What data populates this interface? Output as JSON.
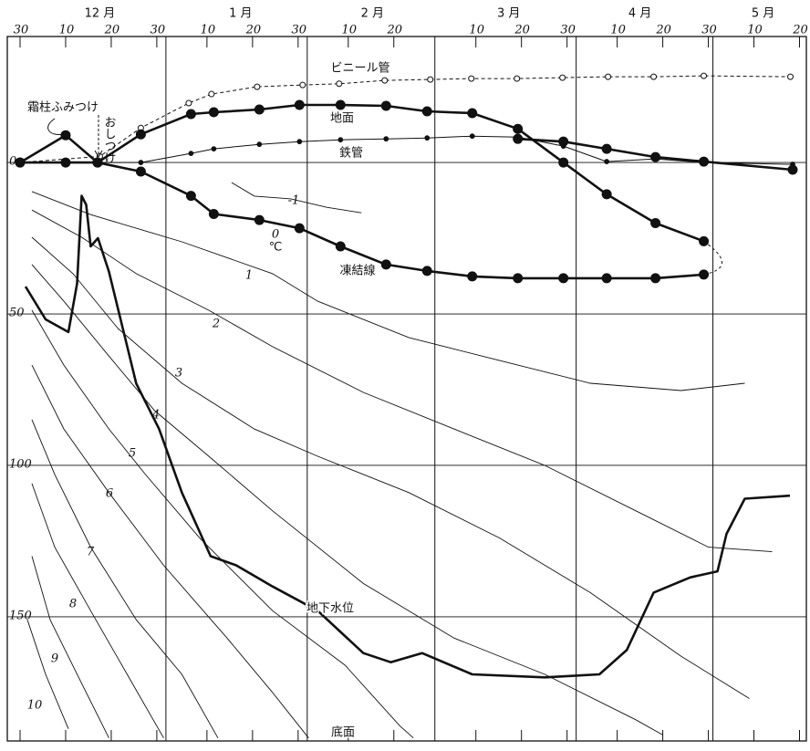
{
  "chart_data": {
    "type": "line",
    "color": "#111111",
    "xlim": [
      -2.8,
      172.5
    ],
    "ylim": [
      -191,
      41.6
    ],
    "xticks": [
      {
        "value": 0,
        "label": "30"
      },
      {
        "value": 10,
        "label": "10"
      },
      {
        "value": 20,
        "label": "20"
      },
      {
        "value": 30,
        "label": "30"
      },
      {
        "value": 41,
        "label": "10"
      },
      {
        "value": 51,
        "label": "20"
      },
      {
        "value": 61,
        "label": "30"
      },
      {
        "value": 72,
        "label": "10"
      },
      {
        "value": 82,
        "label": "20"
      },
      {
        "value": 100,
        "label": "10"
      },
      {
        "value": 110,
        "label": "20"
      },
      {
        "value": 120,
        "label": "30"
      },
      {
        "value": 131,
        "label": "10"
      },
      {
        "value": 141,
        "label": "20"
      },
      {
        "value": 151,
        "label": "30"
      },
      {
        "value": 161,
        "label": "10"
      },
      {
        "value": 171,
        "label": "20"
      }
    ],
    "month_labels": [
      {
        "value": 17.5,
        "label": "12 月"
      },
      {
        "value": 48.4,
        "label": "1 月"
      },
      {
        "value": 77.3,
        "label": "2 月"
      },
      {
        "value": 107.2,
        "label": "3 月"
      },
      {
        "value": 136,
        "label": "4 月"
      },
      {
        "value": 163,
        "label": "5 月"
      }
    ],
    "xgrid": [
      32,
      63,
      91,
      122,
      152
    ],
    "yticks": [
      0,
      {
        "value": -50,
        "label": "50"
      },
      {
        "value": -100,
        "label": "100"
      },
      {
        "value": -150,
        "label": "150"
      }
    ],
    "grid": true,
    "series": [
      {
        "name": "ビニール管",
        "line_style": "dashed",
        "marker": "open",
        "line_width": 1,
        "x": [
          0,
          17.5,
          26.5,
          37,
          42,
          52,
          62,
          70,
          80,
          90,
          99,
          109,
          119,
          129,
          139,
          150,
          169
        ],
        "values": [
          0,
          2,
          11.4,
          19.6,
          22.6,
          25,
          25.6,
          26,
          27.1,
          27.4,
          27.7,
          27.7,
          28,
          28.3,
          28.3,
          28.6,
          28.3
        ]
      },
      {
        "name": "地面",
        "line_style": "solid",
        "marker": "large",
        "line_width": 2.6,
        "x": [
          0,
          10,
          17,
          26.5,
          37.5,
          42.5,
          52.5,
          61.3,
          70.3,
          80.3,
          89.3,
          99.2,
          109.2,
          119.2,
          128.7,
          139.4,
          150
        ],
        "values": [
          0,
          9,
          0,
          9.3,
          16,
          16.6,
          17.5,
          19,
          19,
          18.7,
          16.9,
          16.3,
          11.1,
          0,
          -10.5,
          -20,
          -26
        ]
      },
      {
        "name": "鉄管",
        "line_style": "solid",
        "marker": "small",
        "line_width": 1,
        "x": [
          0,
          26.5,
          37.5,
          42.5,
          52.5,
          61.3,
          70.3,
          80.3,
          89.3,
          99.2,
          109.2,
          119.2,
          128.7,
          139.4,
          150,
          169.5
        ],
        "values": [
          0,
          0,
          3,
          4.5,
          6,
          6.9,
          7.5,
          7.8,
          8.1,
          8.7,
          8.4,
          5.4,
          0.3,
          1.2,
          0,
          -0.6
        ]
      },
      {
        "line_style": "solid",
        "marker": "large",
        "line_width": 2.6,
        "x": [
          109.2,
          119.2,
          128.7,
          139.4,
          150,
          169.5
        ],
        "values": [
          7.8,
          6.9,
          4.5,
          1.8,
          0.3,
          -2.4
        ]
      },
      {
        "name": "凍結線",
        "line_style": "solid",
        "marker": "large",
        "line_width": 2.6,
        "x": [
          0,
          10,
          17,
          26.5,
          37.5,
          42.5,
          52.5,
          61.3,
          70.3,
          80.3,
          89.3,
          99.2,
          109.2,
          119.2,
          128.7,
          139.4,
          150
        ],
        "values": [
          0,
          0,
          0,
          -3,
          -11,
          -17,
          -19,
          -21.7,
          -27.7,
          -33.7,
          -35.8,
          -37.6,
          -38.2,
          -38.2,
          -38.2,
          -38.2,
          -37
        ]
      },
      {
        "name": "地下水位",
        "line_style": "solid",
        "marker": "none",
        "line_width": 2.6,
        "x": [
          1.2,
          5.6,
          10.6,
          12.5,
          13.5,
          14.5,
          15.5,
          17.1,
          19.5,
          25.5,
          30.5,
          35.5,
          41.8,
          47.4,
          55.4,
          65.3,
          75.3,
          81.3,
          88.2,
          99.2,
          115.1,
          127.1,
          133.1,
          139,
          147,
          153,
          155,
          159,
          168.9
        ],
        "values": [
          -41,
          -51.8,
          -56,
          -40,
          -11,
          -14,
          -27.7,
          -25,
          -36,
          -73,
          -88,
          -109,
          -130,
          -133,
          -140,
          -148,
          -162,
          -165,
          -162,
          -169,
          -170,
          -169,
          -161,
          -142,
          -137,
          -135,
          -122.6,
          -111,
          -110
        ]
      }
    ],
    "isotherms": [
      {
        "name": "-1",
        "x": [
          46.4,
          51.4,
          59.4,
          67.3,
          74.9
        ],
        "values": [
          -6.6,
          -11.1,
          -12,
          -14.8,
          -16.6
        ]
      },
      {
        "name": "1",
        "x": [
          2.6,
          15.5,
          35.5,
          55.4,
          65.3,
          85.3,
          105.2,
          125.1,
          145,
          159
        ],
        "values": [
          -9.6,
          -17.2,
          -26.2,
          -36.7,
          -45.8,
          -57.8,
          -65.4,
          -72.9,
          -75.3,
          -72.9
        ]
      },
      {
        "name": "2",
        "x": [
          2.6,
          13.5,
          25.5,
          41.4,
          55.4,
          75.3,
          95.2,
          115.1,
          135.1,
          151,
          165
        ],
        "values": [
          -15.7,
          -24.7,
          -36.7,
          -48.8,
          -60.8,
          -75.9,
          -88,
          -100,
          -115,
          -127,
          -128.5
        ]
      },
      {
        "name": "3",
        "x": [
          2.6,
          11.6,
          21.5,
          35.5,
          51.4,
          65.3,
          85.3,
          105.2,
          125.1,
          145,
          160
        ],
        "values": [
          -24.7,
          -36.7,
          -54.8,
          -72.9,
          -88,
          -97,
          -109,
          -124,
          -142,
          -163,
          -177
        ]
      },
      {
        "name": "4",
        "x": [
          2.6,
          9.6,
          19.5,
          29.5,
          41.4,
          55.4,
          75.3,
          95.2,
          115.1,
          135.1,
          141
        ],
        "values": [
          -33.7,
          -45.8,
          -63.9,
          -81.9,
          -97,
          -115,
          -139,
          -157,
          -169,
          -184,
          -189
        ]
      },
      {
        "name": "5",
        "x": [
          2.6,
          9.6,
          19.5,
          27.5,
          39.4,
          55.4,
          71.3,
          83.3,
          86.3
        ],
        "values": [
          -48.8,
          -66.9,
          -88,
          -103,
          -124,
          -148,
          -166,
          -186,
          -190
        ]
      },
      {
        "name": "6",
        "x": [
          2.6,
          9.6,
          19.5,
          31.5,
          45.4,
          55.4,
          63.3
        ],
        "values": [
          -66.9,
          -88,
          -109,
          -133,
          -157,
          -175,
          -190
        ]
      },
      {
        "name": "7",
        "x": [
          2.6,
          7.6,
          15.5,
          25.5,
          35.5,
          43.4
        ],
        "values": [
          -84.9,
          -103,
          -127,
          -151,
          -169,
          -190
        ]
      },
      {
        "name": "8",
        "x": [
          2.6,
          7.6,
          15.5,
          23.5,
          31.5
        ],
        "values": [
          -106,
          -127,
          -148,
          -169,
          -190
        ]
      },
      {
        "name": "9",
        "x": [
          2.6,
          6.6,
          13.5,
          19.5
        ],
        "values": [
          -130,
          -151,
          -172,
          -190
        ]
      },
      {
        "name": "10",
        "x": [
          1.6,
          5.6,
          10.6
        ],
        "values": [
          -151,
          -169,
          -187
        ]
      }
    ],
    "annotations": [
      "霜柱ふみつけ",
      "おしつけ",
      "0",
      "℃",
      "底面"
    ]
  }
}
